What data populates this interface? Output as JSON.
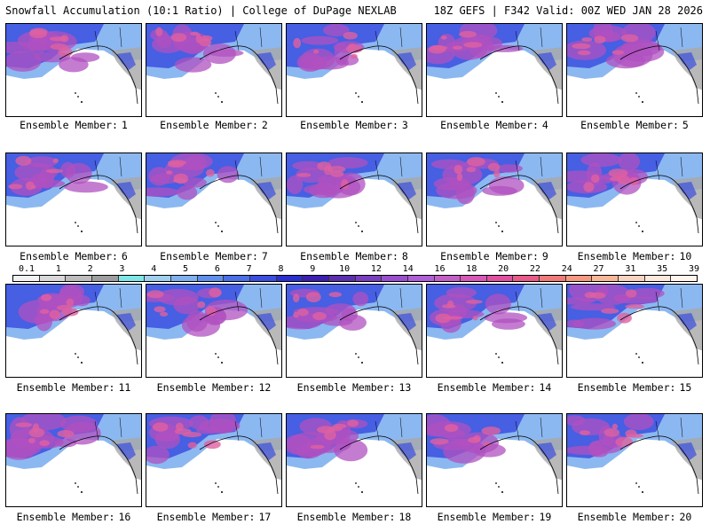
{
  "header": {
    "title": "Snowfall Accumulation (10:1 Ratio) | College of DuPage NEXLAB",
    "run_info": "18Z GEFS | F342 Valid: 00Z WED JAN 28 2026"
  },
  "member_label_prefix": "Ensemble Member:",
  "members": [
    "1",
    "2",
    "3",
    "4",
    "5",
    "6",
    "7",
    "8",
    "9",
    "10",
    "11",
    "12",
    "13",
    "14",
    "15",
    "16",
    "17",
    "18",
    "19",
    "20"
  ],
  "legend": {
    "labels": [
      "0.1",
      "1",
      "2",
      "3",
      "4",
      "5",
      "6",
      "7",
      "8",
      "9",
      "10",
      "12",
      "14",
      "16",
      "18",
      "20",
      "22",
      "24",
      "27",
      "31",
      "35",
      "39"
    ],
    "colors": [
      "#f2f2f2",
      "#d8d8d8",
      "#bdbdbd",
      "#9e9e9e",
      "#7fe6e6",
      "#9fd0f0",
      "#7fb0f0",
      "#6090ee",
      "#4a6fe8",
      "#3a4fe0",
      "#2a2fd0",
      "#3a1fb0",
      "#5a2fb0",
      "#7a3fc0",
      "#9a4fd0",
      "#b05fd8",
      "#c45fc8",
      "#d858b8",
      "#e050a0",
      "#e85a88",
      "#f07a78",
      "#f59a80",
      "#f8b898",
      "#fad2c0",
      "#fce8dc",
      "#fff5ee"
    ]
  },
  "colors": {
    "land": "#a8a8a8",
    "snow_light": "#7fb0f0",
    "snow_mid": "#3a4fe0",
    "snow_heavy": "#b050c0",
    "snow_max": "#e060a0",
    "coast": "#000000"
  }
}
